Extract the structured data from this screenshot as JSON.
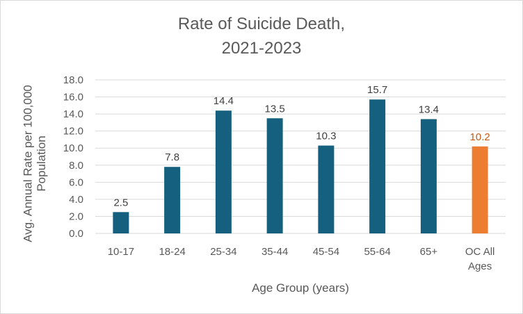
{
  "chart_data": {
    "type": "bar",
    "title_lines": [
      "Rate of Suicide Death,",
      "2021-2023"
    ],
    "xlabel": "Age Group (years)",
    "ylabel_lines": [
      "Avg. Annual Rate per 100,000",
      "Population"
    ],
    "ylim": [
      0,
      18
    ],
    "ytick_step": 2,
    "ytick_labels": [
      "0.0",
      "2.0",
      "4.0",
      "6.0",
      "8.0",
      "10.0",
      "12.0",
      "14.0",
      "16.0",
      "18.0"
    ],
    "categories": [
      "10-17",
      "18-24",
      "25-34",
      "35-44",
      "45-54",
      "55-64",
      "65+",
      "OC All Ages"
    ],
    "category_label_lines": [
      [
        "10-17"
      ],
      [
        "18-24"
      ],
      [
        "25-34"
      ],
      [
        "35-44"
      ],
      [
        "45-54"
      ],
      [
        "55-64"
      ],
      [
        "65+"
      ],
      [
        "OC All",
        "Ages"
      ]
    ],
    "values": [
      2.5,
      7.8,
      14.4,
      13.5,
      10.3,
      15.7,
      13.4,
      10.2
    ],
    "value_labels": [
      "2.5",
      "7.8",
      "14.4",
      "13.5",
      "10.3",
      "15.7",
      "13.4",
      "10.2"
    ],
    "grid": true,
    "legend": "none",
    "colors": {
      "bar": "#16607f",
      "highlight_bar": "#ed7d31",
      "label": "#404040",
      "highlight_label": "#c55a11",
      "grid": "#d9d9d9"
    },
    "highlight_indices": [
      7
    ]
  }
}
